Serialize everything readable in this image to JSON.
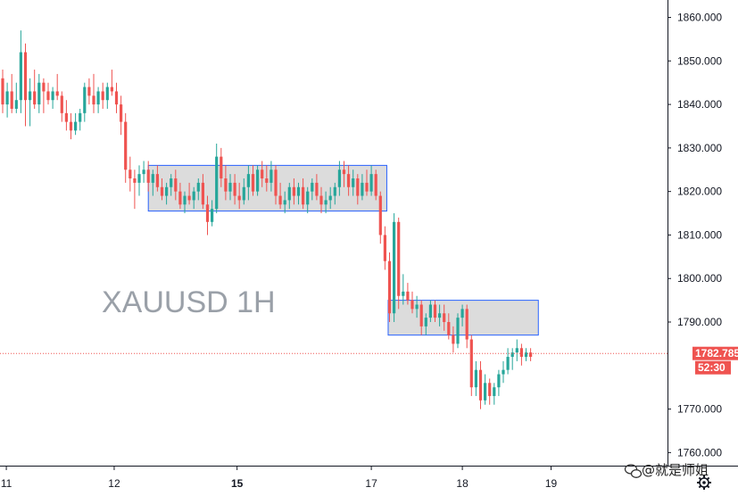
{
  "chart_data": {
    "type": "candlestick",
    "symbol_label": "XAUUSD 1H",
    "ylim": [
      1757,
      1864
    ],
    "y_ticks": [
      "1860.000",
      "1850.000",
      "1840.000",
      "1830.000",
      "1820.000",
      "1810.000",
      "1800.000",
      "1790.000",
      "1770.000",
      "1760.000"
    ],
    "y_tick_values": [
      1860,
      1850,
      1840,
      1830,
      1820,
      1810,
      1800,
      1790,
      1770,
      1760
    ],
    "x_ticks": [
      {
        "label": "11",
        "t": 0.8,
        "bold": false
      },
      {
        "label": "12",
        "t": 24.5,
        "bold": false
      },
      {
        "label": "15",
        "t": 51.5,
        "bold": true
      },
      {
        "label": "17",
        "t": 81.0,
        "bold": false
      },
      {
        "label": "18",
        "t": 101.0,
        "bold": false
      },
      {
        "label": "19",
        "t": 120.5,
        "bold": false
      }
    ],
    "current_price": {
      "value": 1782.785,
      "label": "1782.785",
      "countdown": "52:30"
    },
    "zones": [
      {
        "t0": 32.0,
        "t1": 84.4,
        "top": 1826.0,
        "bottom": 1815.5
      },
      {
        "t0": 84.7,
        "t1": 117.7,
        "top": 1795.0,
        "bottom": 1787.0
      }
    ],
    "candles": [
      [
        1846,
        1848,
        1838,
        1840
      ],
      [
        1840,
        1845,
        1837,
        1843
      ],
      [
        1843,
        1847,
        1838,
        1839
      ],
      [
        1839,
        1845,
        1838,
        1841
      ],
      [
        1841,
        1857,
        1838,
        1852
      ],
      [
        1852,
        1854,
        1835,
        1841
      ],
      [
        1841,
        1846,
        1835,
        1843
      ],
      [
        1843,
        1848,
        1839,
        1840
      ],
      [
        1840,
        1847,
        1838,
        1845
      ],
      [
        1845,
        1846,
        1838,
        1843
      ],
      [
        1843,
        1845,
        1840,
        1841
      ],
      [
        1841,
        1844,
        1839,
        1843
      ],
      [
        1843,
        1847,
        1841,
        1842
      ],
      [
        1842,
        1843,
        1836,
        1838
      ],
      [
        1838,
        1841,
        1834,
        1836
      ],
      [
        1836,
        1838,
        1832,
        1834
      ],
      [
        1834,
        1838,
        1833,
        1836
      ],
      [
        1836,
        1839,
        1834,
        1838
      ],
      [
        1838,
        1845,
        1836,
        1844
      ],
      [
        1844,
        1846,
        1840,
        1842
      ],
      [
        1842,
        1847,
        1838,
        1840
      ],
      [
        1840,
        1844,
        1838,
        1843
      ],
      [
        1843,
        1845,
        1839,
        1841
      ],
      [
        1841,
        1845,
        1839,
        1844
      ],
      [
        1844,
        1848,
        1842,
        1843
      ],
      [
        1843,
        1845,
        1838,
        1840
      ],
      [
        1840,
        1842,
        1833,
        1836
      ],
      [
        1836,
        1838,
        1822,
        1825
      ],
      [
        1825,
        1828,
        1820,
        1823
      ],
      [
        1823,
        1825,
        1816,
        1822
      ],
      [
        1822,
        1826,
        1819,
        1824
      ],
      [
        1824,
        1827,
        1822,
        1825
      ],
      [
        1825,
        1827,
        1820,
        1822
      ],
      [
        1822,
        1825,
        1819,
        1824
      ],
      [
        1824,
        1826,
        1820,
        1821
      ],
      [
        1821,
        1823,
        1818,
        1819
      ],
      [
        1819,
        1822,
        1817,
        1821
      ],
      [
        1821,
        1824,
        1819,
        1823
      ],
      [
        1823,
        1825,
        1818,
        1820
      ],
      [
        1820,
        1822,
        1816,
        1817
      ],
      [
        1817,
        1820,
        1815,
        1819
      ],
      [
        1819,
        1822,
        1817,
        1818
      ],
      [
        1818,
        1821,
        1816,
        1820
      ],
      [
        1820,
        1823,
        1818,
        1822
      ],
      [
        1822,
        1824,
        1816,
        1817
      ],
      [
        1817,
        1819,
        1810,
        1813
      ],
      [
        1813,
        1818,
        1812,
        1816
      ],
      [
        1816,
        1831,
        1815,
        1828
      ],
      [
        1828,
        1830,
        1821,
        1823
      ],
      [
        1823,
        1826,
        1818,
        1820
      ],
      [
        1820,
        1824,
        1818,
        1822
      ],
      [
        1822,
        1824,
        1817,
        1819
      ],
      [
        1819,
        1822,
        1816,
        1818
      ],
      [
        1818,
        1823,
        1817,
        1821
      ],
      [
        1821,
        1826,
        1818,
        1824
      ],
      [
        1824,
        1826,
        1819,
        1820
      ],
      [
        1820,
        1826,
        1819,
        1825
      ],
      [
        1825,
        1827,
        1821,
        1823
      ],
      [
        1823,
        1826,
        1820,
        1822
      ],
      [
        1822,
        1827,
        1820,
        1825
      ],
      [
        1825,
        1826,
        1817,
        1819
      ],
      [
        1819,
        1822,
        1816,
        1817
      ],
      [
        1817,
        1820,
        1815,
        1818
      ],
      [
        1818,
        1822,
        1816,
        1821
      ],
      [
        1821,
        1823,
        1817,
        1819
      ],
      [
        1819,
        1822,
        1817,
        1821
      ],
      [
        1821,
        1823,
        1816,
        1817
      ],
      [
        1817,
        1821,
        1815,
        1820
      ],
      [
        1820,
        1823,
        1818,
        1822
      ],
      [
        1822,
        1824,
        1818,
        1819
      ],
      [
        1819,
        1821,
        1815,
        1817
      ],
      [
        1817,
        1820,
        1815,
        1818
      ],
      [
        1818,
        1821,
        1816,
        1819
      ],
      [
        1819,
        1822,
        1817,
        1821
      ],
      [
        1821,
        1827,
        1819,
        1825
      ],
      [
        1825,
        1827,
        1821,
        1824
      ],
      [
        1824,
        1826,
        1819,
        1821
      ],
      [
        1821,
        1825,
        1819,
        1823
      ],
      [
        1823,
        1824,
        1817,
        1819
      ],
      [
        1819,
        1824,
        1818,
        1822
      ],
      [
        1822,
        1825,
        1819,
        1820
      ],
      [
        1820,
        1826,
        1819,
        1824
      ],
      [
        1824,
        1825,
        1818,
        1819
      ],
      [
        1819,
        1820,
        1808,
        1810
      ],
      [
        1810,
        1812,
        1802,
        1804
      ],
      [
        1804,
        1806,
        1790,
        1792
      ],
      [
        1792,
        1815,
        1790,
        1813
      ],
      [
        1813,
        1814,
        1793,
        1796
      ],
      [
        1796,
        1801,
        1794,
        1797
      ],
      [
        1797,
        1799,
        1794,
        1795
      ],
      [
        1795,
        1797,
        1792,
        1793
      ],
      [
        1793,
        1796,
        1791,
        1794
      ],
      [
        1794,
        1795,
        1787,
        1789
      ],
      [
        1789,
        1792,
        1787,
        1791
      ],
      [
        1791,
        1795,
        1790,
        1794
      ],
      [
        1794,
        1795,
        1790,
        1791
      ],
      [
        1791,
        1794,
        1789,
        1792
      ],
      [
        1792,
        1794,
        1788,
        1790
      ],
      [
        1790,
        1792,
        1786,
        1787
      ],
      [
        1787,
        1789,
        1783,
        1785
      ],
      [
        1785,
        1792,
        1784,
        1791
      ],
      [
        1791,
        1794,
        1789,
        1793
      ],
      [
        1793,
        1794,
        1784,
        1786
      ],
      [
        1786,
        1787,
        1773,
        1775
      ],
      [
        1775,
        1781,
        1773,
        1779
      ],
      [
        1779,
        1781,
        1770,
        1772
      ],
      [
        1772,
        1778,
        1771,
        1776
      ],
      [
        1776,
        1777,
        1771,
        1773
      ],
      [
        1773,
        1776,
        1771,
        1775
      ],
      [
        1775,
        1779,
        1773,
        1778
      ],
      [
        1778,
        1781,
        1776,
        1779
      ],
      [
        1779,
        1784,
        1778,
        1782
      ],
      [
        1782,
        1784,
        1779,
        1783
      ],
      [
        1783,
        1786,
        1781,
        1784
      ],
      [
        1784,
        1785,
        1780,
        1782
      ],
      [
        1782,
        1784,
        1781,
        1783
      ],
      [
        1783,
        1784,
        1781,
        1782
      ]
    ],
    "colors": {
      "up": "#26a69a",
      "down": "#ef5350",
      "zone_fill": "#dcdcdc",
      "zone_border": "#2962ff",
      "axis": "#131722",
      "price_line": "#ef5350",
      "price_tag": "#ef5350"
    }
  },
  "watermark": {
    "text": "@就是师姐"
  },
  "icons": {
    "settings": "gear-icon",
    "watermark": "wechat-icon"
  }
}
